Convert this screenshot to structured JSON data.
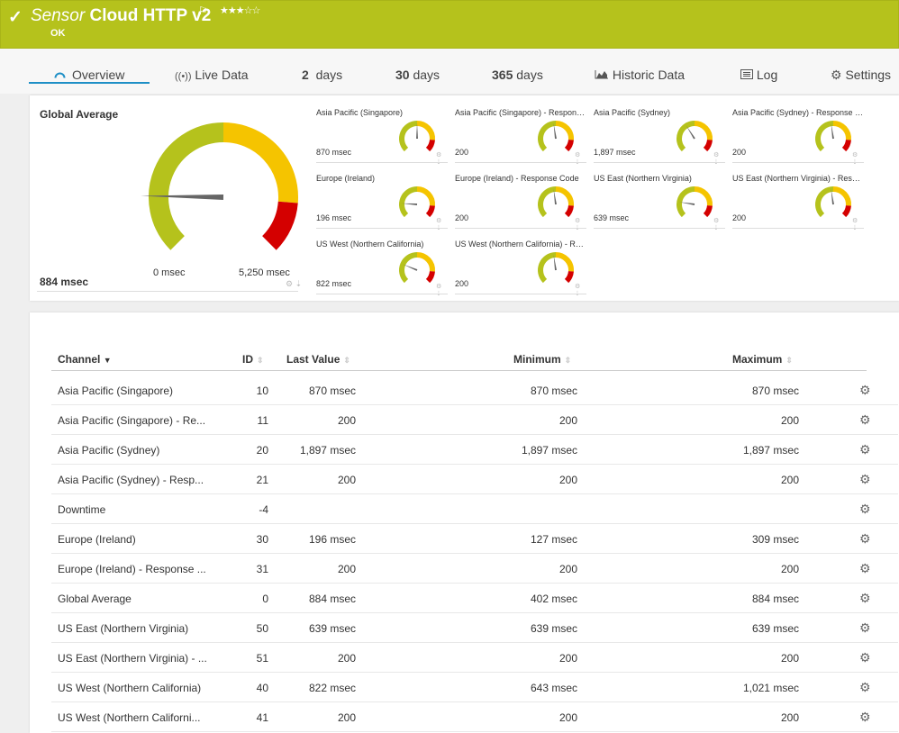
{
  "header": {
    "title_prefix": "Sensor",
    "title_main": "Cloud HTTP v2",
    "status": "OK",
    "rating": 3,
    "color": "#b5c21c"
  },
  "tabs": [
    {
      "label": "Overview",
      "icon": "gauge-icon",
      "active": true
    },
    {
      "label": "Live Data",
      "icon": "broadcast-icon"
    },
    {
      "num": "2",
      "label": "days"
    },
    {
      "num": "30",
      "label": "days"
    },
    {
      "num": "365",
      "label": "days"
    },
    {
      "label": "Historic Data",
      "icon": "area-chart-icon"
    },
    {
      "label": "Log",
      "icon": "log-icon"
    },
    {
      "label": "Settings",
      "icon": "gear-icon"
    }
  ],
  "gauge_main": {
    "label": "Global Average",
    "value": "884 msec",
    "min_label": "0 msec",
    "max_label": "5,250 msec",
    "needle_fraction": 0.17
  },
  "mini_gauges": [
    {
      "name": "Asia Pacific (Singapore)",
      "value": "870 msec",
      "needle_fraction": 0.5
    },
    {
      "name": "Asia Pacific (Singapore) - Response Code",
      "value": "200",
      "needle_fraction": 0.47
    },
    {
      "name": "Asia Pacific (Sydney)",
      "value": "1,897 msec",
      "needle_fraction": 0.38
    },
    {
      "name": "Asia Pacific (Sydney) - Response Code",
      "value": "200",
      "needle_fraction": 0.47
    },
    {
      "name": "Europe (Ireland)",
      "value": "196 msec",
      "needle_fraction": 0.18
    },
    {
      "name": "Europe (Ireland) - Response Code",
      "value": "200",
      "needle_fraction": 0.47
    },
    {
      "name": "US East (Northern Virginia)",
      "value": "639 msec",
      "needle_fraction": 0.2
    },
    {
      "name": "US East (Northern Virginia) - Response Code",
      "value": "200",
      "needle_fraction": 0.47
    },
    {
      "name": "US West (Northern California)",
      "value": "822 msec",
      "needle_fraction": 0.25
    },
    {
      "name": "US West (Northern California) - Response Code",
      "value": "200",
      "needle_fraction": 0.47
    }
  ],
  "table": {
    "headers": {
      "channel": "Channel",
      "id": "ID",
      "last": "Last Value",
      "min": "Minimum",
      "max": "Maximum"
    },
    "rows": [
      {
        "channel": "Asia Pacific (Singapore)",
        "id": "10",
        "last": "870 msec",
        "min": "870 msec",
        "max": "870 msec"
      },
      {
        "channel": "Asia Pacific (Singapore) - Re...",
        "id": "11",
        "last": "200",
        "min": "200",
        "max": "200"
      },
      {
        "channel": "Asia Pacific (Sydney)",
        "id": "20",
        "last": "1,897 msec",
        "min": "1,897 msec",
        "max": "1,897 msec"
      },
      {
        "channel": "Asia Pacific (Sydney) - Resp...",
        "id": "21",
        "last": "200",
        "min": "200",
        "max": "200"
      },
      {
        "channel": "Downtime",
        "id": "-4",
        "last": "",
        "min": "",
        "max": ""
      },
      {
        "channel": "Europe (Ireland)",
        "id": "30",
        "last": "196 msec",
        "min": "127 msec",
        "max": "309 msec"
      },
      {
        "channel": "Europe (Ireland) - Response ...",
        "id": "31",
        "last": "200",
        "min": "200",
        "max": "200"
      },
      {
        "channel": "Global Average",
        "id": "0",
        "last": "884 msec",
        "min": "402 msec",
        "max": "884 msec"
      },
      {
        "channel": "US East (Northern Virginia)",
        "id": "50",
        "last": "639 msec",
        "min": "639 msec",
        "max": "639 msec"
      },
      {
        "channel": "US East (Northern Virginia) - ...",
        "id": "51",
        "last": "200",
        "min": "200",
        "max": "200"
      },
      {
        "channel": "US West (Northern California)",
        "id": "40",
        "last": "822 msec",
        "min": "643 msec",
        "max": "1,021 msec"
      },
      {
        "channel": "US West (Northern Californi...",
        "id": "41",
        "last": "200",
        "min": "200",
        "max": "200"
      }
    ]
  },
  "colors": {
    "green": "#b5c21c",
    "yellow": "#f5c400",
    "red": "#d40000",
    "accent": "#1e8fc6"
  }
}
